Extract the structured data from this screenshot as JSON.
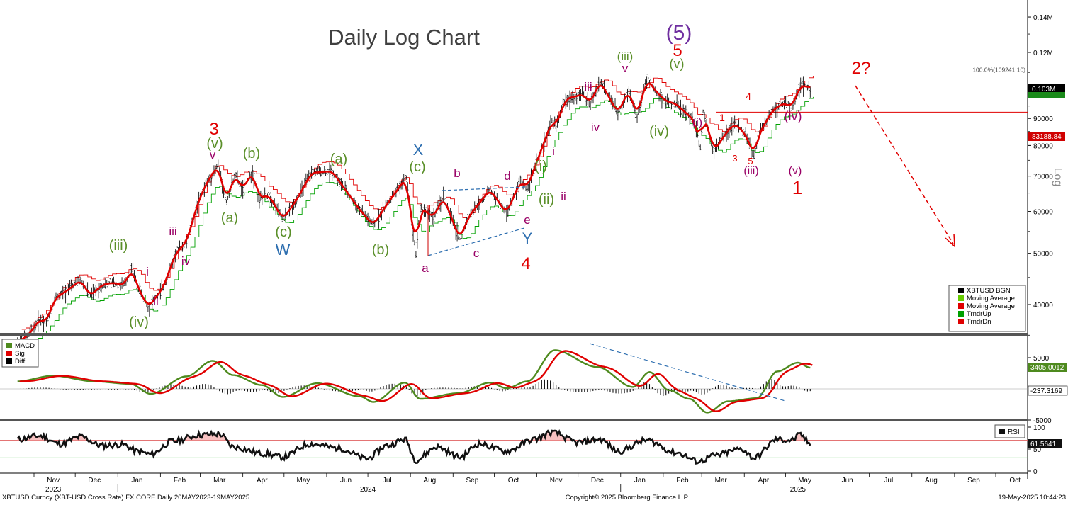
{
  "chart_data": [
    {
      "type": "line",
      "title": "Daily Log Chart",
      "scale": "log",
      "ylabel": "Log",
      "yticks": [
        "0.14M",
        "0.12M",
        "0.103M",
        "90000",
        "83188.84",
        "80000",
        "70000",
        "60000",
        "50000",
        "40000"
      ],
      "ylim": [
        34000,
        150000
      ],
      "series": [
        {
          "name": "XBTUSD BGN",
          "color": "#000000"
        },
        {
          "name": "Moving Average",
          "color": "#66cc00"
        },
        {
          "name": "Moving Average",
          "color": "#e00000"
        },
        {
          "name": "TrndrUp",
          "color": "#00a000"
        },
        {
          "name": "TrndrDn",
          "color": "#e00000"
        }
      ],
      "price_points": [
        [
          "2023-10-20",
          34000
        ],
        [
          "2023-10-28",
          35000
        ],
        [
          "2023-11-05",
          37500
        ],
        [
          "2023-11-10",
          37000
        ],
        [
          "2023-11-16",
          41000
        ],
        [
          "2023-11-25",
          42500
        ],
        [
          "2023-12-05",
          44500
        ],
        [
          "2023-12-12",
          41500
        ],
        [
          "2023-12-20",
          43500
        ],
        [
          "2023-12-28",
          44000
        ],
        [
          "2024-01-06",
          43500
        ],
        [
          "2024-01-11",
          47000
        ],
        [
          "2024-01-15",
          43500
        ],
        [
          "2024-01-23",
          39500
        ],
        [
          "2024-02-03",
          43000
        ],
        [
          "2024-02-12",
          50000
        ],
        [
          "2024-02-20",
          52500
        ],
        [
          "2024-02-28",
          62000
        ],
        [
          "2024-03-05",
          67500
        ],
        [
          "2024-03-14",
          73500
        ],
        [
          "2024-03-20",
          62500
        ],
        [
          "2024-03-26",
          70500
        ],
        [
          "2024-04-01",
          66000
        ],
        [
          "2024-04-08",
          71500
        ],
        [
          "2024-04-13",
          63500
        ],
        [
          "2024-04-20",
          64500
        ],
        [
          "2024-04-30",
          58000
        ],
        [
          "2024-05-10",
          63000
        ],
        [
          "2024-05-21",
          71000
        ],
        [
          "2024-06-05",
          71500
        ],
        [
          "2024-06-25",
          60500
        ],
        [
          "2024-07-05",
          56500
        ],
        [
          "2024-07-15",
          62000
        ],
        [
          "2024-07-29",
          69500
        ],
        [
          "2024-08-05",
          50000
        ],
        [
          "2024-08-08",
          61000
        ],
        [
          "2024-08-18",
          58500
        ],
        [
          "2024-08-25",
          64000
        ],
        [
          "2024-09-06",
          53000
        ],
        [
          "2024-09-12",
          58500
        ],
        [
          "2024-09-28",
          66000
        ],
        [
          "2024-10-10",
          59500
        ],
        [
          "2024-10-20",
          68500
        ],
        [
          "2024-10-25",
          66500
        ],
        [
          "2024-11-12",
          89000
        ],
        [
          "2024-11-15",
          87000
        ],
        [
          "2024-11-22",
          98000
        ],
        [
          "2024-12-05",
          100000
        ],
        [
          "2024-12-10",
          96000
        ],
        [
          "2024-12-17",
          106000
        ],
        [
          "2024-12-30",
          92000
        ],
        [
          "2025-01-07",
          102000
        ],
        [
          "2025-01-13",
          90500
        ],
        [
          "2025-01-20",
          107000
        ],
        [
          "2025-01-27",
          101000
        ],
        [
          "2025-02-03",
          97000
        ],
        [
          "2025-02-10",
          96000
        ],
        [
          "2025-02-24",
          89000
        ],
        [
          "2025-02-28",
          79000
        ],
        [
          "2025-03-02",
          93000
        ],
        [
          "2025-03-10",
          78000
        ],
        [
          "2025-03-18",
          84000
        ],
        [
          "2025-03-25",
          88000
        ],
        [
          "2025-04-02",
          84000
        ],
        [
          "2025-04-08",
          76500
        ],
        [
          "2025-04-12",
          84500
        ],
        [
          "2025-04-22",
          93500
        ],
        [
          "2025-05-01",
          96500
        ],
        [
          "2025-05-05",
          94000
        ],
        [
          "2025-05-12",
          104000
        ],
        [
          "2025-05-19",
          103000
        ]
      ],
      "reference_lines": [
        {
          "label": "100.0%(109241.10)",
          "value": 109241.1,
          "style": "dashed",
          "color": "#000000"
        },
        {
          "value": 92500,
          "style": "solid",
          "color": "#e00000"
        }
      ],
      "last_price_tags": [
        {
          "label": "0.103M",
          "color": "#000000"
        },
        {
          "label": "0.101M",
          "color": "#1a8a1a"
        },
        {
          "label": "83188.84",
          "color": "#d00000"
        }
      ],
      "wave_labels": [
        {
          "text": "(iii)",
          "color": "#5a8f29"
        },
        {
          "text": "(iv)",
          "color": "#5a8f29"
        },
        {
          "text": "i",
          "color": "#990066"
        },
        {
          "text": "ii",
          "color": "#990066"
        },
        {
          "text": "iii",
          "color": "#990066"
        },
        {
          "text": "iv",
          "color": "#990066"
        },
        {
          "text": "3",
          "color": "#e00000"
        },
        {
          "text": "(v)",
          "color": "#5a8f29"
        },
        {
          "text": "v",
          "color": "#990066"
        },
        {
          "text": "(a)",
          "color": "#5a8f29"
        },
        {
          "text": "(b)",
          "color": "#5a8f29"
        },
        {
          "text": "(c)",
          "color": "#5a8f29"
        },
        {
          "text": "W",
          "color": "#2e6fb0"
        },
        {
          "text": "(a)",
          "color": "#5a8f29"
        },
        {
          "text": "(b)",
          "color": "#5a8f29"
        },
        {
          "text": "X",
          "color": "#2e6fb0"
        },
        {
          "text": "(c)",
          "color": "#5a8f29"
        },
        {
          "text": "a",
          "color": "#990066"
        },
        {
          "text": "b",
          "color": "#990066"
        },
        {
          "text": "c",
          "color": "#990066"
        },
        {
          "text": "d",
          "color": "#990066"
        },
        {
          "text": "e",
          "color": "#990066"
        },
        {
          "text": "Y",
          "color": "#2e6fb0"
        },
        {
          "text": "4",
          "color": "#e00000"
        },
        {
          "text": "(i)",
          "color": "#5a8f29"
        },
        {
          "text": "(ii)",
          "color": "#5a8f29"
        },
        {
          "text": "i",
          "color": "#990066"
        },
        {
          "text": "ii",
          "color": "#990066"
        },
        {
          "text": "iii",
          "color": "#990066"
        },
        {
          "text": "iv",
          "color": "#990066"
        },
        {
          "text": "(iii)",
          "color": "#5a8f29"
        },
        {
          "text": "v",
          "color": "#990066"
        },
        {
          "text": "(iv)",
          "color": "#5a8f29"
        },
        {
          "text": "(5)",
          "color": "#7030a0"
        },
        {
          "text": "5",
          "color": "#e00000"
        },
        {
          "text": "(v)",
          "color": "#5a8f29"
        },
        {
          "text": "(i)",
          "color": "#990066"
        },
        {
          "text": "1",
          "color": "#e00000"
        },
        {
          "text": "4",
          "color": "#e00000"
        },
        {
          "text": "3",
          "color": "#e00000"
        },
        {
          "text": "5",
          "color": "#e00000"
        },
        {
          "text": "(iii)",
          "color": "#990066"
        },
        {
          "text": "(iv)",
          "color": "#990066"
        },
        {
          "text": "(v)",
          "color": "#990066"
        },
        {
          "text": "1",
          "color": "#e00000"
        },
        {
          "text": "2?",
          "color": "#e00000"
        }
      ]
    },
    {
      "type": "line",
      "title": "",
      "series": [
        {
          "name": "MACD",
          "color": "#4e8a1e"
        },
        {
          "name": "Sig",
          "color": "#e00000"
        },
        {
          "name": "Diff",
          "color": "#000000"
        }
      ],
      "yticks": [
        "5000",
        "3405.0012",
        "0",
        "-237.3169",
        "-5000"
      ],
      "last_values": [
        {
          "label": "3405.0012",
          "color": "#4e8a1e"
        },
        {
          "label": "-237.3169",
          "color": "#000000"
        }
      ],
      "macd_points": [
        [
          "2023-10-20",
          1200
        ],
        [
          "2023-11-15",
          2100
        ],
        [
          "2023-12-15",
          1200
        ],
        [
          "2024-01-10",
          800
        ],
        [
          "2024-01-25",
          -800
        ],
        [
          "2024-02-20",
          2000
        ],
        [
          "2024-03-10",
          4500
        ],
        [
          "2024-03-25",
          2200
        ],
        [
          "2024-04-15",
          600
        ],
        [
          "2024-04-30",
          -1300
        ],
        [
          "2024-05-25",
          900
        ],
        [
          "2024-06-25",
          -1200
        ],
        [
          "2024-07-05",
          -2100
        ],
        [
          "2024-07-28",
          1000
        ],
        [
          "2024-08-08",
          -1600
        ],
        [
          "2024-09-05",
          -700
        ],
        [
          "2024-09-28",
          1000
        ],
        [
          "2024-10-10",
          100
        ],
        [
          "2024-10-25",
          1200
        ],
        [
          "2024-11-14",
          6200
        ],
        [
          "2024-12-15",
          3500
        ],
        [
          "2025-01-10",
          300
        ],
        [
          "2025-01-22",
          2700
        ],
        [
          "2025-02-05",
          -200
        ],
        [
          "2025-02-20",
          -1600
        ],
        [
          "2025-03-05",
          -3800
        ],
        [
          "2025-03-20",
          -2000
        ],
        [
          "2025-04-10",
          -1500
        ],
        [
          "2025-04-25",
          2800
        ],
        [
          "2025-05-10",
          4200
        ],
        [
          "2025-05-19",
          3405
        ]
      ]
    },
    {
      "type": "line",
      "title": "",
      "series": [
        {
          "name": "RSI",
          "color": "#000000"
        }
      ],
      "yticks": [
        "100",
        "61.5641",
        "50",
        "0"
      ],
      "ylim": [
        0,
        100
      ],
      "reference_lines": [
        70,
        30
      ],
      "rsi_points": [
        [
          "2023-10-20",
          72
        ],
        [
          "2023-11-05",
          80
        ],
        [
          "2023-11-20",
          62
        ],
        [
          "2023-12-05",
          78
        ],
        [
          "2023-12-20",
          58
        ],
        [
          "2024-01-05",
          60
        ],
        [
          "2024-01-15",
          45
        ],
        [
          "2024-01-25",
          38
        ],
        [
          "2024-02-10",
          68
        ],
        [
          "2024-03-01",
          82
        ],
        [
          "2024-03-15",
          84
        ],
        [
          "2024-03-25",
          55
        ],
        [
          "2024-04-15",
          40
        ],
        [
          "2024-04-30",
          32
        ],
        [
          "2024-05-20",
          62
        ],
        [
          "2024-06-10",
          52
        ],
        [
          "2024-06-30",
          28
        ],
        [
          "2024-07-15",
          58
        ],
        [
          "2024-07-28",
          72
        ],
        [
          "2024-08-05",
          25
        ],
        [
          "2024-08-20",
          55
        ],
        [
          "2024-09-06",
          32
        ],
        [
          "2024-09-20",
          62
        ],
        [
          "2024-10-10",
          45
        ],
        [
          "2024-10-30",
          72
        ],
        [
          "2024-11-12",
          88
        ],
        [
          "2024-12-01",
          65
        ],
        [
          "2024-12-17",
          72
        ],
        [
          "2024-12-30",
          45
        ],
        [
          "2025-01-20",
          70
        ],
        [
          "2025-02-10",
          42
        ],
        [
          "2025-02-27",
          22
        ],
        [
          "2025-03-10",
          35
        ],
        [
          "2025-03-30",
          50
        ],
        [
          "2025-04-08",
          30
        ],
        [
          "2025-04-25",
          72
        ],
        [
          "2025-05-05",
          70
        ],
        [
          "2025-05-12",
          82
        ],
        [
          "2025-05-19",
          61.6
        ]
      ]
    }
  ],
  "x_axis": {
    "months": [
      "Nov",
      "Dec",
      "Jan",
      "Feb",
      "Mar",
      "Apr",
      "May",
      "Jun",
      "Jul",
      "Aug",
      "Sep",
      "Oct",
      "Nov",
      "Dec",
      "Jan",
      "Feb",
      "Mar",
      "Apr",
      "May",
      "Jun",
      "Jul",
      "Aug",
      "Sep",
      "Oct"
    ],
    "years": [
      "2023",
      "2024",
      "2025"
    ]
  },
  "legend_price": [
    "XBTUSD BGN",
    "Moving Average",
    "Moving Average",
    "TrndrUp",
    "TrndrDn"
  ],
  "legend_macd": [
    "MACD",
    "Sig",
    "Diff"
  ],
  "legend_rsi": "RSI",
  "footer": {
    "left": "XBTUSD Curncy (XBT-USD Cross Rate) FX CORE  Daily 20MAY2023-19MAY2025",
    "center": "Copyright© 2025 Bloomberg Finance L.P.",
    "right": "19-May-2025 10:44:23"
  }
}
